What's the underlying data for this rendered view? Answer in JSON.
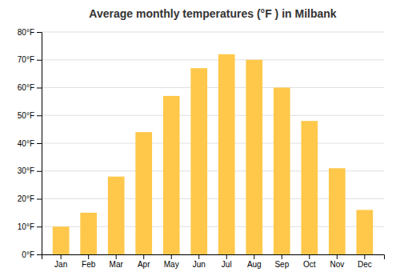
{
  "chart_data": {
    "type": "bar",
    "title": "Average monthly temperatures (°F ) in Milbank",
    "categories": [
      "Jan",
      "Feb",
      "Mar",
      "Apr",
      "May",
      "Jun",
      "Jul",
      "Aug",
      "Sep",
      "Oct",
      "Nov",
      "Dec"
    ],
    "values": [
      10,
      15,
      28,
      44,
      57,
      67,
      72,
      70,
      60,
      48,
      31,
      16
    ],
    "color": "#FFC84A",
    "ylim": [
      0,
      80
    ],
    "yticks": [
      {
        "value": 0,
        "label": "0°F"
      },
      {
        "value": 10,
        "label": "10°F"
      },
      {
        "value": 20,
        "label": "20°F"
      },
      {
        "value": 30,
        "label": "30°F"
      },
      {
        "value": 40,
        "label": "40°F"
      },
      {
        "value": 50,
        "label": "50°F"
      },
      {
        "value": 60,
        "label": "60°F"
      },
      {
        "value": 70,
        "label": "70°F"
      },
      {
        "value": 80,
        "label": "80°F"
      }
    ],
    "grid": true
  }
}
